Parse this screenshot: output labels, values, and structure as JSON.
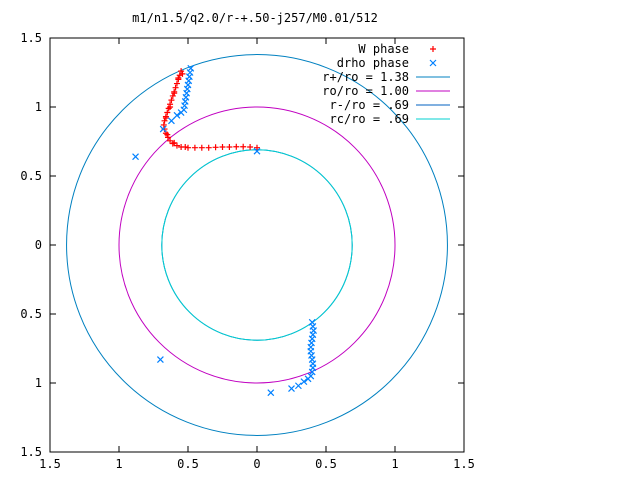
{
  "chart_data": {
    "type": "scatter",
    "title": "m1/n1.5/q2.0/r-+.50-j257/M0.01/512",
    "xlabel": "",
    "ylabel": "",
    "xlim": [
      -1.5,
      1.5
    ],
    "ylim": [
      -1.5,
      1.5
    ],
    "x_ticks": [
      -1.5,
      -1,
      -0.5,
      0,
      0.5,
      1,
      1.5
    ],
    "x_tick_labels": [
      "1.5",
      "1",
      "0.5",
      "0",
      "0.5",
      "1",
      "1.5"
    ],
    "y_ticks": [
      1.5,
      1,
      0.5,
      0,
      -0.5,
      -1,
      -1.5
    ],
    "y_tick_labels": [
      "1.5",
      "1",
      "0.5",
      "0",
      "0.5",
      "1",
      "1.5"
    ],
    "grid": false,
    "legend_position": "top-right",
    "series": [
      {
        "name": "W phase",
        "kind": "points",
        "marker": "plus",
        "color": "#ff0000",
        "points": [
          [
            -0.55,
            1.26
          ],
          [
            -0.56,
            1.23
          ],
          [
            -0.57,
            1.2
          ],
          [
            -0.58,
            1.17
          ],
          [
            -0.59,
            1.14
          ],
          [
            -0.6,
            1.11
          ],
          [
            -0.61,
            1.08
          ],
          [
            -0.62,
            1.05
          ],
          [
            -0.63,
            1.02
          ],
          [
            -0.64,
            0.99
          ],
          [
            -0.65,
            0.96
          ],
          [
            -0.66,
            0.93
          ],
          [
            -0.67,
            0.9
          ],
          [
            -0.675,
            0.87
          ],
          [
            -0.67,
            0.84
          ],
          [
            -0.66,
            0.81
          ],
          [
            -0.645,
            0.78
          ],
          [
            -0.63,
            0.755
          ],
          [
            -0.61,
            0.735
          ],
          [
            -0.58,
            0.72
          ],
          [
            -0.55,
            0.71
          ],
          [
            -0.5,
            0.705
          ],
          [
            -0.45,
            0.705
          ],
          [
            -0.4,
            0.705
          ],
          [
            -0.35,
            0.705
          ],
          [
            -0.3,
            0.708
          ],
          [
            -0.25,
            0.71
          ],
          [
            -0.2,
            0.71
          ],
          [
            -0.15,
            0.712
          ],
          [
            -0.1,
            0.712
          ],
          [
            -0.05,
            0.71
          ],
          [
            0.0,
            0.705
          ],
          [
            -0.54,
            1.24
          ],
          [
            -0.57,
            1.21
          ],
          [
            -0.6,
            1.1
          ],
          [
            -0.63,
            1.0
          ],
          [
            -0.66,
            0.92
          ],
          [
            -0.65,
            0.8
          ],
          [
            -0.6,
            0.74
          ],
          [
            -0.52,
            0.71
          ]
        ]
      },
      {
        "name": "drho phase",
        "kind": "points",
        "marker": "x",
        "color": "#0080ff",
        "points": [
          [
            -0.48,
            1.28
          ],
          [
            -0.485,
            1.25
          ],
          [
            -0.49,
            1.22
          ],
          [
            -0.495,
            1.19
          ],
          [
            -0.5,
            1.16
          ],
          [
            -0.505,
            1.13
          ],
          [
            -0.51,
            1.1
          ],
          [
            -0.515,
            1.07
          ],
          [
            -0.52,
            1.04
          ],
          [
            -0.525,
            1.01
          ],
          [
            -0.53,
            0.98
          ],
          [
            -0.55,
            0.96
          ],
          [
            -0.58,
            0.94
          ],
          [
            -0.62,
            0.9
          ],
          [
            -0.68,
            0.84
          ],
          [
            -0.88,
            0.64
          ],
          [
            0.0,
            0.68
          ],
          [
            0.4,
            -0.56
          ],
          [
            0.405,
            -0.59
          ],
          [
            0.41,
            -0.62
          ],
          [
            0.405,
            -0.65
          ],
          [
            0.4,
            -0.68
          ],
          [
            0.395,
            -0.71
          ],
          [
            0.39,
            -0.74
          ],
          [
            0.39,
            -0.77
          ],
          [
            0.395,
            -0.8
          ],
          [
            0.4,
            -0.83
          ],
          [
            0.405,
            -0.86
          ],
          [
            0.405,
            -0.89
          ],
          [
            0.4,
            -0.92
          ],
          [
            0.39,
            -0.95
          ],
          [
            0.37,
            -0.97
          ],
          [
            0.34,
            -0.99
          ],
          [
            0.3,
            -1.02
          ],
          [
            0.25,
            -1.04
          ],
          [
            0.1,
            -1.07
          ],
          [
            -0.7,
            -0.83
          ]
        ]
      },
      {
        "name": "r+/ro = 1.38",
        "kind": "circle",
        "radius": 1.38,
        "color": "#0080c0"
      },
      {
        "name": "ro/ro = 1.00",
        "kind": "circle",
        "radius": 1.0,
        "color": "#c000c0"
      },
      {
        "name": "r-/ro = .69",
        "kind": "circle",
        "radius": 0.69,
        "color": "#0060c0"
      },
      {
        "name": "rc/ro = .69",
        "kind": "circle",
        "radius": 0.69,
        "color": "#00d0d0"
      }
    ]
  }
}
